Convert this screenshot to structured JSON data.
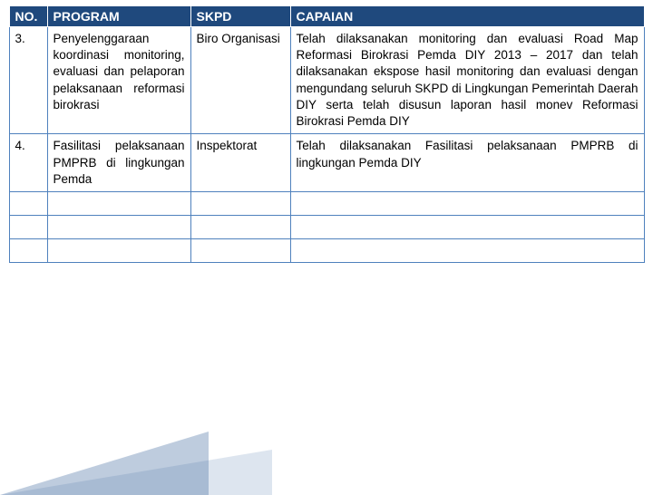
{
  "table": {
    "headers": {
      "no": "NO.",
      "program": "PROGRAM",
      "skpd": "SKPD",
      "capaian": "CAPAIAN"
    },
    "rows": [
      {
        "no": "3.",
        "program": "Penyelenggaraan koordinasi monitoring, evaluasi dan pelaporan pelaksanaan reformasi birokrasi",
        "skpd": "Biro Organisasi",
        "capaian": "Telah dilaksanakan monitoring dan evaluasi Road Map Reformasi Birokrasi Pemda DIY 2013 – 2017 dan telah dilaksanakan ekspose hasil monitoring dan evaluasi dengan mengundang seluruh SKPD di Lingkungan Pemerintah Daerah DIY serta telah disusun laporan hasil monev Reformasi Birokrasi Pemda DIY"
      },
      {
        "no": "4.",
        "program": "Fasilitasi pelaksanaan PMPRB di lingkungan Pemda",
        "skpd": "Inspektorat",
        "capaian": "Telah dilaksanakan Fasilitasi pelaksanaan PMPRB di lingkungan Pemda DIY"
      }
    ],
    "empty_rows": 3
  },
  "colors": {
    "header_bg": "#1f497d",
    "header_fg": "#ffffff",
    "cell_border": "#4f81bd",
    "wedge1": "rgba(70,110,160,0.35)",
    "wedge2": "rgba(120,150,190,0.25)"
  }
}
